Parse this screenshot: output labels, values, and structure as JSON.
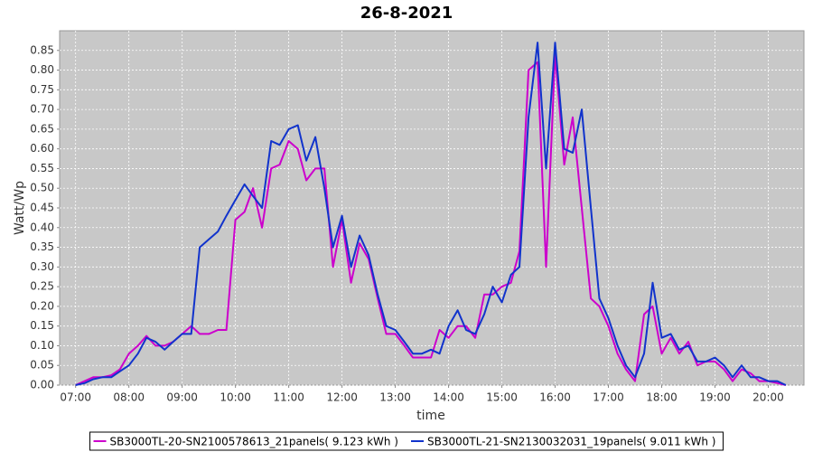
{
  "chart_data": {
    "type": "line",
    "title": "26-8-2021",
    "x_label": "time",
    "y_label": "Watt/Wp",
    "x": [
      7,
      7.17,
      7.33,
      7.5,
      7.67,
      7.83,
      8,
      8.17,
      8.33,
      8.5,
      8.67,
      8.83,
      9,
      9.17,
      9.33,
      9.5,
      9.67,
      9.83,
      10,
      10.17,
      10.33,
      10.5,
      10.67,
      10.83,
      11,
      11.17,
      11.33,
      11.5,
      11.67,
      11.83,
      12,
      12.17,
      12.33,
      12.5,
      12.67,
      12.83,
      13,
      13.17,
      13.33,
      13.5,
      13.67,
      13.83,
      14,
      14.17,
      14.33,
      14.5,
      14.67,
      14.83,
      15,
      15.17,
      15.33,
      15.5,
      15.67,
      15.83,
      16,
      16.17,
      16.33,
      16.5,
      16.67,
      16.83,
      17,
      17.17,
      17.33,
      17.5,
      17.67,
      17.83,
      18,
      18.17,
      18.33,
      18.5,
      18.67,
      18.83,
      19,
      19.17,
      19.33,
      19.5,
      19.67,
      19.83,
      20,
      20.17,
      20.33
    ],
    "series": [
      {
        "name": "SB3000TL-20-SN2100578613_21panels( 9.123 kWh )",
        "color": "#cc00cc",
        "values": [
          0,
          0.01,
          0.02,
          0.02,
          0.025,
          0.04,
          0.08,
          0.1,
          0.125,
          0.1,
          0.1,
          0.11,
          0.13,
          0.15,
          0.13,
          0.13,
          0.14,
          0.14,
          0.42,
          0.44,
          0.5,
          0.4,
          0.55,
          0.56,
          0.62,
          0.6,
          0.52,
          0.55,
          0.55,
          0.3,
          0.42,
          0.26,
          0.36,
          0.32,
          0.22,
          0.13,
          0.13,
          0.1,
          0.07,
          0.07,
          0.07,
          0.14,
          0.12,
          0.15,
          0.15,
          0.12,
          0.23,
          0.23,
          0.25,
          0.26,
          0.34,
          0.8,
          0.82,
          0.3,
          0.84,
          0.56,
          0.68,
          0.45,
          0.22,
          0.2,
          0.15,
          0.08,
          0.04,
          0.01,
          0.18,
          0.2,
          0.08,
          0.12,
          0.08,
          0.11,
          0.05,
          0.06,
          0.06,
          0.04,
          0.01,
          0.04,
          0.03,
          0.01,
          0.01,
          0.005,
          0
        ]
      },
      {
        "name": "SB3000TL-21-SN2130032031_19panels( 9.011 kWh )",
        "color": "#1133cc",
        "values": [
          0,
          0.005,
          0.015,
          0.02,
          0.02,
          0.035,
          0.05,
          0.08,
          0.12,
          0.11,
          0.09,
          0.11,
          0.13,
          0.13,
          0.35,
          0.37,
          0.39,
          0.43,
          0.47,
          0.51,
          0.48,
          0.45,
          0.62,
          0.61,
          0.65,
          0.66,
          0.57,
          0.63,
          0.5,
          0.35,
          0.43,
          0.3,
          0.38,
          0.33,
          0.23,
          0.15,
          0.14,
          0.11,
          0.08,
          0.08,
          0.09,
          0.08,
          0.15,
          0.19,
          0.14,
          0.13,
          0.18,
          0.25,
          0.21,
          0.28,
          0.3,
          0.68,
          0.87,
          0.55,
          0.87,
          0.6,
          0.59,
          0.7,
          0.45,
          0.22,
          0.17,
          0.1,
          0.05,
          0.02,
          0.08,
          0.26,
          0.12,
          0.13,
          0.09,
          0.1,
          0.06,
          0.06,
          0.07,
          0.05,
          0.02,
          0.05,
          0.02,
          0.02,
          0.01,
          0.01,
          0
        ]
      }
    ],
    "xlim": [
      6.7,
      20.67
    ],
    "xticks": [
      {
        "value": 7,
        "label": "07:00"
      },
      {
        "value": 8,
        "label": "08:00"
      },
      {
        "value": 9,
        "label": "09:00"
      },
      {
        "value": 10,
        "label": "10:00"
      },
      {
        "value": 11,
        "label": "11:00"
      },
      {
        "value": 12,
        "label": "12:00"
      },
      {
        "value": 13,
        "label": "13:00"
      },
      {
        "value": 14,
        "label": "14:00"
      },
      {
        "value": 15,
        "label": "15:00"
      },
      {
        "value": 16,
        "label": "16:00"
      },
      {
        "value": 17,
        "label": "17:00"
      },
      {
        "value": 18,
        "label": "18:00"
      },
      {
        "value": 19,
        "label": "19:00"
      },
      {
        "value": 20,
        "label": "20:00"
      }
    ],
    "ylim": [
      0,
      0.9
    ],
    "yticks": [
      {
        "value": 0,
        "label": "0.00"
      },
      {
        "value": 0.05,
        "label": "0.05"
      },
      {
        "value": 0.1,
        "label": "0.10"
      },
      {
        "value": 0.15,
        "label": "0.15"
      },
      {
        "value": 0.2,
        "label": "0.20"
      },
      {
        "value": 0.25,
        "label": "0.25"
      },
      {
        "value": 0.3,
        "label": "0.30"
      },
      {
        "value": 0.35,
        "label": "0.35"
      },
      {
        "value": 0.4,
        "label": "0.40"
      },
      {
        "value": 0.45,
        "label": "0.45"
      },
      {
        "value": 0.5,
        "label": "0.50"
      },
      {
        "value": 0.55,
        "label": "0.55"
      },
      {
        "value": 0.6,
        "label": "0.60"
      },
      {
        "value": 0.65,
        "label": "0.65"
      },
      {
        "value": 0.7,
        "label": "0.70"
      },
      {
        "value": 0.75,
        "label": "0.75"
      },
      {
        "value": 0.8,
        "label": "0.80"
      },
      {
        "value": 0.85,
        "label": "0.85"
      }
    ],
    "grid": true,
    "legend": "bottom"
  }
}
